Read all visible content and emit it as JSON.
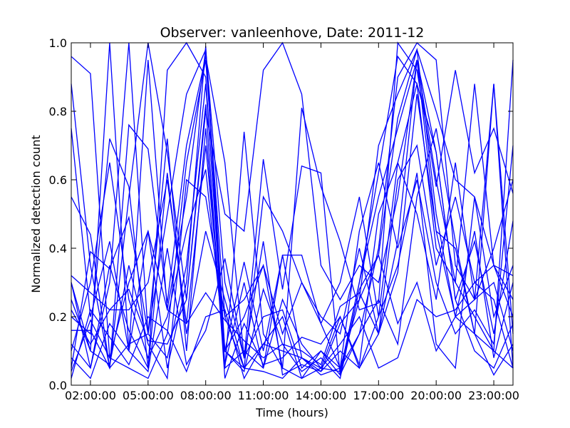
{
  "chart_data": {
    "type": "line",
    "title": "Observer: vanleenhove, Date: 2011-12",
    "xlabel": "Time (hours)",
    "ylabel": "Normalized detection count",
    "xlim": [
      1,
      24
    ],
    "ylim": [
      0,
      1.0
    ],
    "grid": false,
    "legend": "none",
    "line_color": "#0000ff",
    "x_ticks": [
      {
        "value": 2,
        "label": "02:00:00"
      },
      {
        "value": 5,
        "label": "05:00:00"
      },
      {
        "value": 8,
        "label": "08:00:00"
      },
      {
        "value": 11,
        "label": "11:00:00"
      },
      {
        "value": 14,
        "label": "14:00:00"
      },
      {
        "value": 17,
        "label": "17:00:00"
      },
      {
        "value": 20,
        "label": "20:00:00"
      },
      {
        "value": 23,
        "label": "23:00:00"
      }
    ],
    "y_ticks": [
      {
        "value": 0.0,
        "label": "0.0"
      },
      {
        "value": 0.2,
        "label": "0.2"
      },
      {
        "value": 0.4,
        "label": "0.4"
      },
      {
        "value": 0.6,
        "label": "0.6"
      },
      {
        "value": 0.8,
        "label": "0.8"
      },
      {
        "value": 1.0,
        "label": "1.0"
      }
    ],
    "x": [
      1,
      2,
      3,
      4,
      5,
      6,
      7,
      8,
      9,
      10,
      11,
      12,
      13,
      14,
      15,
      16,
      17,
      18,
      19,
      20,
      21,
      22,
      23,
      24
    ],
    "series": [
      {
        "values": [
          0.96,
          0.91,
          0.08,
          0.05,
          0.02,
          0.15,
          0.65,
          0.95,
          0.2,
          0.05,
          0.12,
          0.1,
          0.08,
          0.05,
          0.04,
          0.3,
          0.55,
          0.75,
          0.95,
          0.6,
          0.3,
          0.2,
          0.1,
          0.95
        ]
      },
      {
        "values": [
          0.88,
          0.35,
          0.05,
          0.12,
          0.15,
          0.5,
          0.85,
          0.98,
          0.05,
          0.1,
          0.05,
          0.38,
          0.38,
          0.18,
          0.05,
          0.25,
          0.7,
          0.85,
          0.98,
          0.5,
          0.2,
          0.15,
          0.88,
          0.05
        ]
      },
      {
        "values": [
          0.75,
          0.2,
          0.42,
          0.1,
          0.95,
          0.22,
          0.55,
          0.98,
          0.3,
          0.08,
          0.2,
          0.22,
          0.05,
          0.1,
          0.03,
          0.15,
          0.4,
          0.9,
          1.0,
          0.95,
          0.35,
          0.25,
          0.3,
          0.1
        ]
      },
      {
        "values": [
          0.55,
          0.44,
          0.05,
          0.55,
          1.0,
          0.68,
          0.25,
          0.8,
          0.5,
          0.45,
          0.92,
          1.0,
          0.85,
          0.35,
          0.25,
          0.35,
          0.3,
          0.55,
          0.95,
          0.45,
          0.4,
          0.15,
          0.1,
          0.05
        ]
      },
      {
        "values": [
          0.3,
          0.05,
          0.3,
          1.0,
          0.15,
          0.72,
          0.1,
          0.75,
          0.06,
          0.3,
          0.05,
          0.25,
          0.12,
          0.05,
          0.2,
          0.06,
          0.5,
          0.65,
          0.88,
          0.68,
          0.25,
          0.42,
          0.15,
          0.48
        ]
      },
      {
        "values": [
          0.25,
          0.1,
          1.0,
          0.1,
          0.45,
          0.05,
          0.3,
          0.99,
          0.1,
          0.05,
          0.55,
          0.45,
          0.3,
          0.2,
          0.15,
          0.4,
          0.15,
          0.6,
          0.7,
          0.35,
          0.55,
          0.3,
          0.35,
          0.25
        ]
      },
      {
        "values": [
          0.2,
          0.15,
          0.72,
          0.58,
          0.05,
          0.92,
          1.0,
          0.9,
          0.05,
          0.74,
          0.15,
          0.05,
          0.81,
          0.58,
          0.42,
          0.22,
          0.24,
          1.0,
          0.92,
          0.58,
          0.92,
          0.62,
          0.75,
          0.56
        ]
      },
      {
        "values": [
          0.16,
          0.16,
          0.05,
          0.76,
          0.69,
          0.24,
          0.7,
          0.96,
          0.65,
          0.08,
          0.66,
          0.28,
          0.64,
          0.62,
          0.03,
          0.3,
          0.62,
          0.96,
          0.88,
          0.4,
          0.3,
          0.88,
          0.35,
          0.32
        ]
      },
      {
        "values": [
          0.1,
          0.3,
          0.65,
          0.25,
          0.08,
          0.2,
          0.45,
          0.63,
          0.1,
          0.36,
          0.1,
          0.38,
          0.08,
          0.04,
          0.18,
          0.25,
          0.38,
          0.78,
          0.98,
          0.8,
          0.6,
          0.55,
          0.35,
          0.2
        ]
      },
      {
        "values": [
          0.05,
          0.39,
          0.34,
          0.49,
          0.15,
          0.08,
          0.35,
          0.88,
          0.1,
          0.04,
          0.28,
          0.12,
          0.1,
          0.06,
          0.23,
          0.27,
          0.15,
          0.33,
          0.85,
          0.45,
          0.2,
          0.25,
          0.88,
          0.15
        ]
      },
      {
        "values": [
          0.32,
          0.27,
          0.22,
          0.22,
          0.3,
          0.6,
          0.18,
          0.7,
          0.1,
          0.2,
          0.35,
          0.05,
          0.02,
          0.1,
          0.05,
          0.45,
          0.65,
          0.4,
          0.6,
          0.3,
          0.15,
          0.22,
          0.12,
          0.7
        ]
      },
      {
        "values": [
          0.22,
          0.12,
          0.22,
          0.28,
          0.13,
          0.12,
          0.25,
          0.82,
          0.02,
          0.18,
          0.06,
          0.08,
          0.14,
          0.12,
          0.2,
          0.05,
          0.15,
          0.42,
          0.95,
          0.68,
          0.25,
          0.1,
          0.05,
          0.18
        ]
      },
      {
        "values": [
          0.04,
          0.19,
          0.08,
          0.3,
          0.45,
          0.22,
          0.18,
          0.27,
          0.19,
          0.13,
          0.08,
          0.12,
          0.04,
          0.08,
          0.02,
          0.28,
          0.38,
          0.18,
          0.3,
          0.1,
          0.2,
          0.45,
          0.08,
          0.3
        ]
      },
      {
        "values": [
          0.12,
          0.05,
          0.35,
          0.16,
          0.05,
          0.62,
          0.15,
          0.45,
          0.25,
          0.05,
          0.04,
          0.02,
          0.08,
          0.03,
          0.05,
          0.15,
          0.25,
          0.12,
          0.55,
          0.75,
          0.42,
          0.15,
          0.03,
          0.12
        ]
      },
      {
        "values": [
          0.08,
          0.02,
          0.18,
          0.1,
          0.04,
          0.4,
          0.06,
          0.16,
          0.37,
          0.08,
          0.42,
          0.03,
          0.06,
          0.04,
          0.1,
          0.05,
          0.2,
          0.35,
          0.62,
          0.12,
          0.05,
          0.55,
          0.2,
          0.35
        ]
      },
      {
        "values": [
          0.3,
          0.1,
          0.06,
          0.35,
          0.12,
          0.02,
          0.6,
          0.55,
          0.2,
          0.25,
          0.35,
          0.15,
          0.3,
          0.18,
          0.3,
          0.55,
          0.2,
          0.65,
          0.5,
          0.25,
          0.65,
          0.25,
          0.4,
          0.6
        ]
      },
      {
        "values": [
          0.02,
          0.22,
          0.14,
          0.06,
          0.2,
          0.16,
          0.04,
          0.2,
          0.22,
          0.02,
          0.12,
          0.2,
          0.02,
          0.05,
          0.12,
          0.2,
          0.05,
          0.08,
          0.25,
          0.2,
          0.22,
          0.3,
          0.25,
          0.05
        ]
      }
    ]
  }
}
